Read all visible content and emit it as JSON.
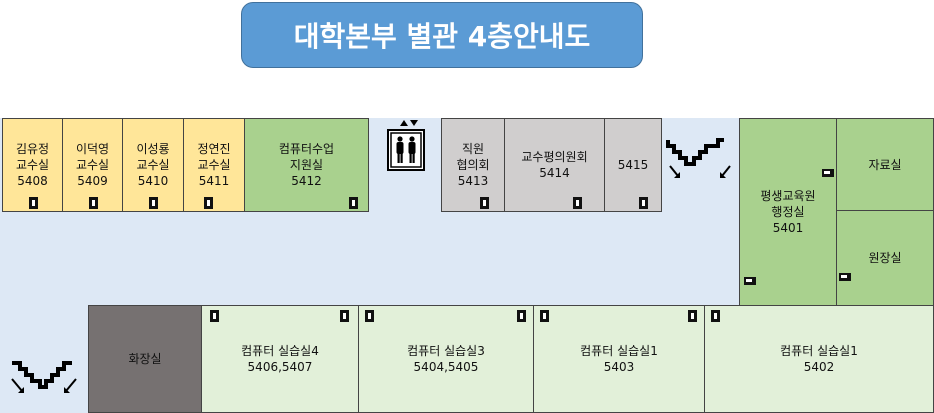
{
  "title": "대학본부 별관 4층안내도",
  "rooms_top_left": [
    {
      "name": "김유정\n교수실",
      "number": "5408"
    },
    {
      "name": "이덕영\n교수실",
      "number": "5409"
    },
    {
      "name": "이성룡\n교수실",
      "number": "5410"
    },
    {
      "name": "정연진\n교수실",
      "number": "5411"
    },
    {
      "name": "컴퓨터수업\n지원실",
      "number": "5412"
    }
  ],
  "rooms_top_mid": [
    {
      "name": "직원\n협의회",
      "number": "5413"
    },
    {
      "name": "교수평의원회",
      "number": "5414"
    },
    {
      "name": "",
      "number": "5415"
    }
  ],
  "rooms_right": {
    "admin": {
      "name": "평생교육원\n행정실",
      "number": "5401"
    },
    "archive": {
      "name": "자료실"
    },
    "director": {
      "name": "원장실"
    }
  },
  "rooms_bottom": {
    "restroom": {
      "name": "화장실"
    },
    "labs": [
      {
        "name": "컴퓨터  실습실4",
        "number": "5406,5407"
      },
      {
        "name": "컴퓨터  실습실3",
        "number": "5404,5405"
      },
      {
        "name": "컴퓨터  실습실1",
        "number": "5403"
      },
      {
        "name": "컴퓨터  실습실1",
        "number": "5402"
      }
    ]
  },
  "icons": {
    "elevator": "elevator-icon",
    "stairs": "stairs-icon",
    "door": "door-icon"
  },
  "colors": {
    "title_bg": "#5b9bd5",
    "professor_office": "#ffe699",
    "support_room": "#a9d18e",
    "lab": "#e2f0d9",
    "council": "#d0cece",
    "restroom": "#767171",
    "corridor": "#dde8f5"
  }
}
